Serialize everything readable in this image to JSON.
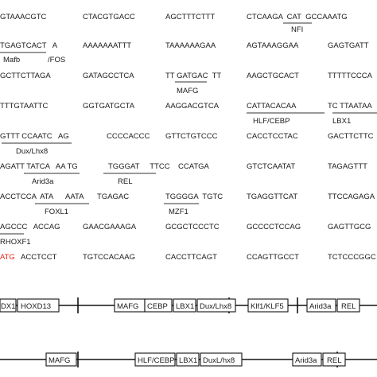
{
  "colors": {
    "text": "#1a1a1a",
    "start_codon": "#e8221b",
    "line": "#111111"
  },
  "sequence_rows": [
    [
      "GTAAACGTC",
      "CTACGTGACC",
      "AGCTTTCTTT",
      "CTCAAGA  CAT  GCCAAATG"
    ],
    [
      "TGAGTCACT   A",
      "AAAAAAATTT",
      "TAAAAAAGAA",
      "AGTAAAGGAA",
      "GAGTGATT"
    ],
    [
      "GCTTCTTAGA",
      "GATAGCCTCA",
      "TT GATGAC  TT",
      "AAGCTGCACT",
      "TTTTTCCCA"
    ],
    [
      "TTTGTAATTC",
      "GGTGATGCTA",
      "AAGGACGTCA",
      "CATTACACAA",
      "TC TTAATAA"
    ],
    [
      "GTTT CCAATC   AG",
      "CCCCACCC",
      "GTTCTGTCCC",
      "CACCTCCTAC",
      "GACTTCTTC"
    ],
    [
      "AGATT TATCA   AA TG",
      "TGGGAT     TTCC",
      "CCATGA",
      "GTCTCAATAT",
      "TAGAGTTT"
    ],
    [
      "ACCTCCA  ATA      AATA",
      "TGAGAC",
      "TGGGGA  TGTC",
      "TGAGGTTCAT",
      "TTCCAGAGA"
    ],
    [
      "AGCCC   ACCAG",
      "GAACGAAAGA",
      "GCGCTCCCTC",
      "GCCCCTCCAG",
      "GAGTTGCG"
    ],
    [
      "ATG",
      "ACCTCCT",
      "TGTCCACAAG",
      "CACCTTCAGT",
      "CCAGTTGCCT",
      "TCTCCCGGC"
    ]
  ],
  "motif_labels": [
    "NFI",
    "Mafb",
    "/FOS",
    "MAFG",
    "HLF/CEBP",
    "LBX1",
    "Dux/Lhx8",
    "Arid3a",
    "REL",
    "FOXL1",
    "MZF1",
    "RHOXF1"
  ],
  "track_1": [
    "DX1",
    "HOXD13",
    "MAFG",
    "CEBP",
    "LBX1",
    "Dux/Lhx8",
    "Klf1/KLF5",
    "Arid3a",
    "REL"
  ],
  "track_2": [
    "MAFG",
    "HLF/CEBP",
    "LBX1",
    "DuxL/hx8",
    "Arid3a",
    "REL"
  ]
}
